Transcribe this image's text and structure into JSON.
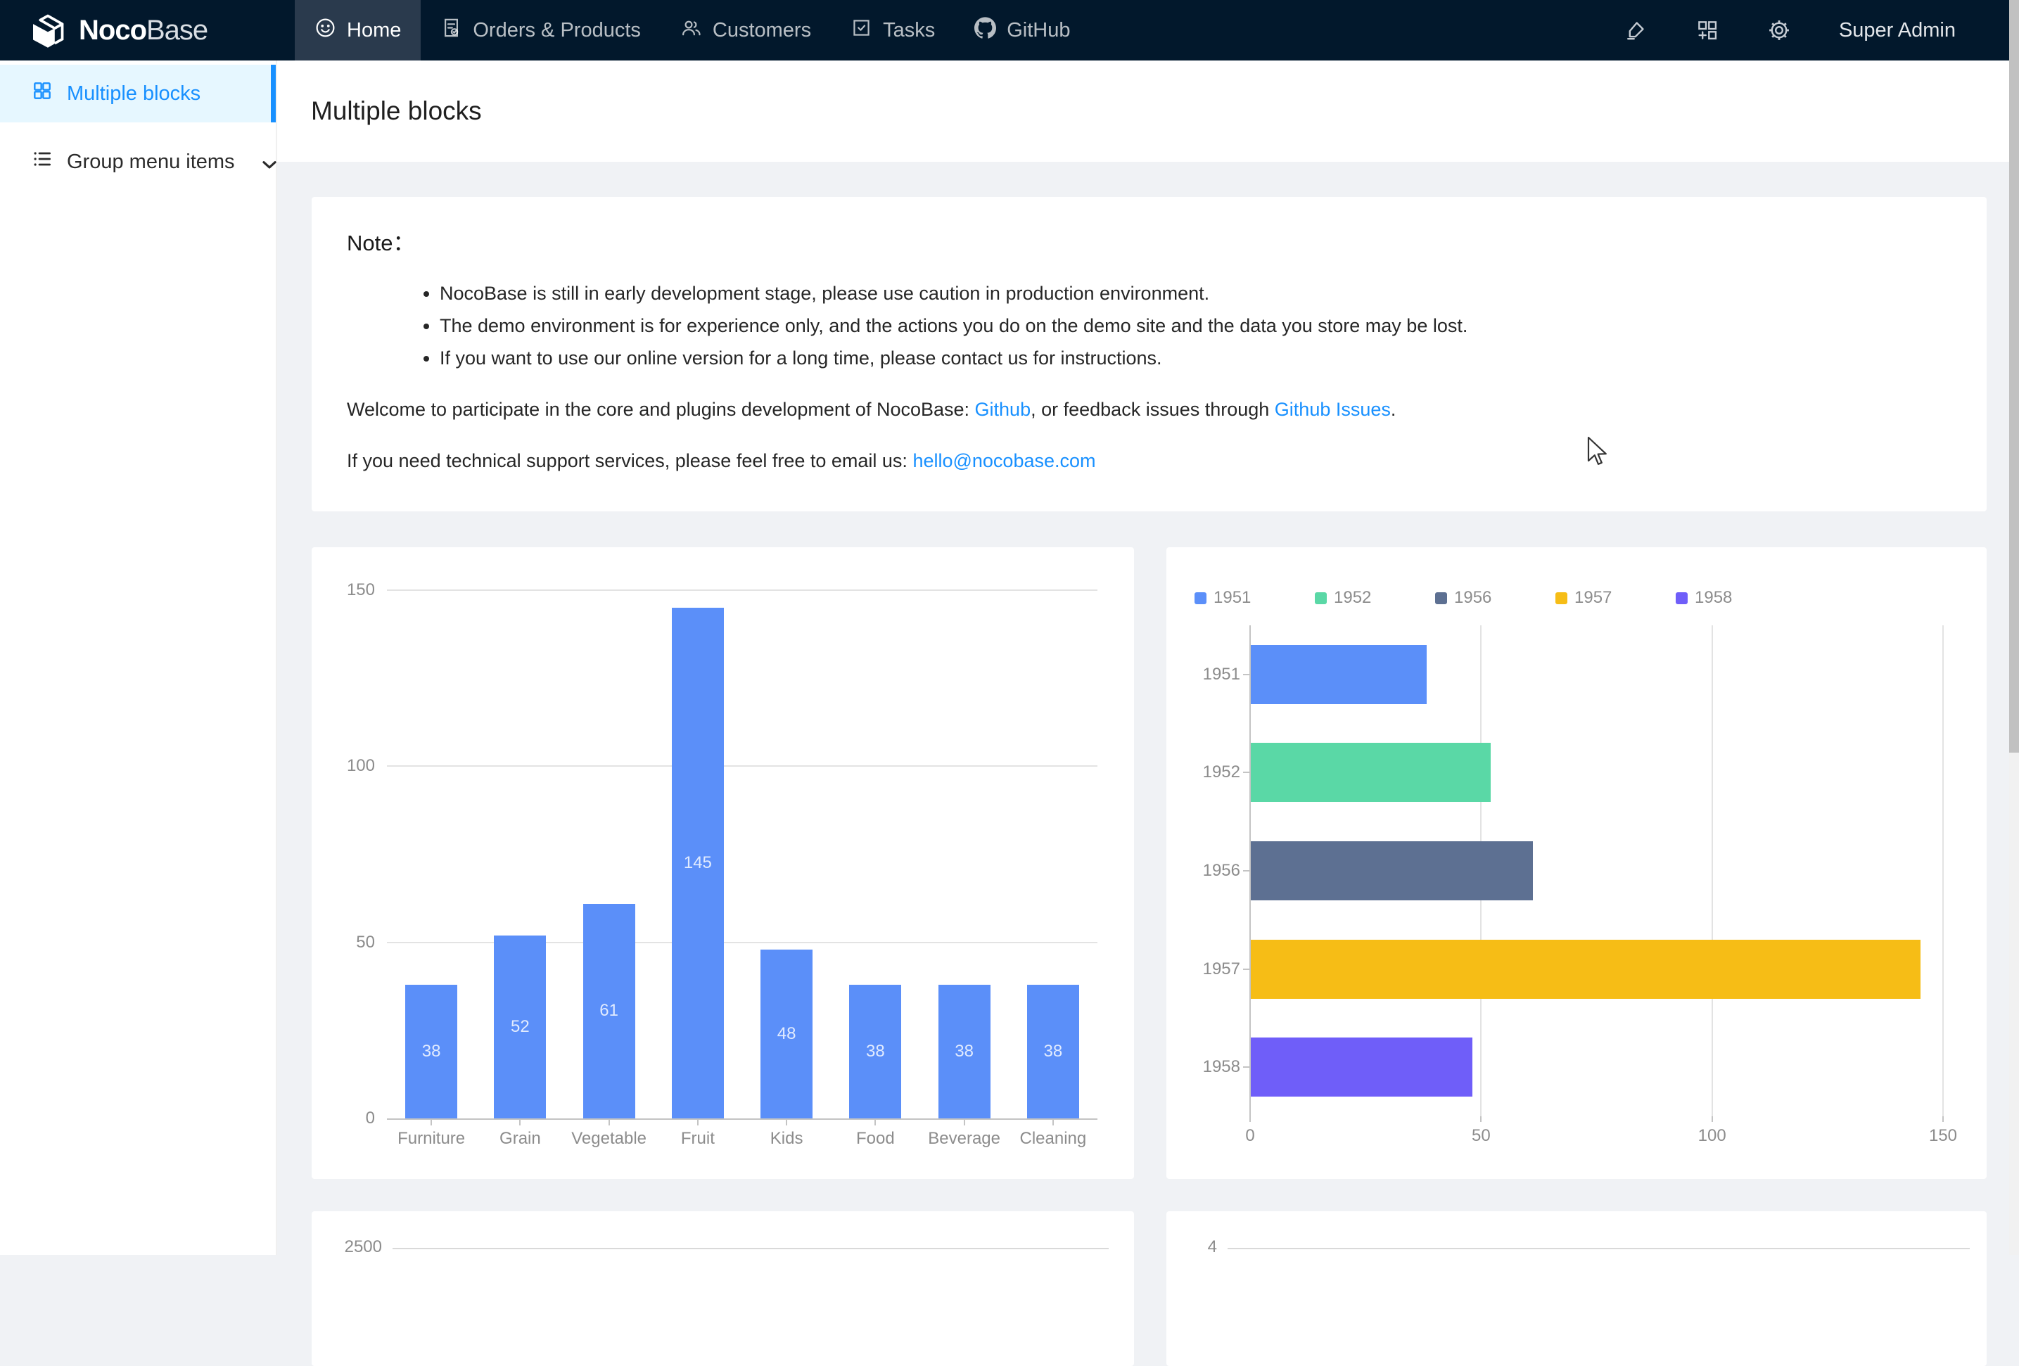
{
  "colors": {
    "nav_bg": "#02182c",
    "nav_active_bg": "#2a3a4d",
    "accent": "#1890ff",
    "content_bg": "#f0f2f5",
    "sidebar_active_bg": "#e6f7ff",
    "bar_blue": "#5B8FF9",
    "bar_green": "#5AD8A6",
    "bar_slate": "#5D7092",
    "bar_gold": "#F6BD16",
    "bar_purple": "#6F5EF9",
    "axis_label": "#8c8c8c",
    "link": "#1890ff"
  },
  "nav": {
    "brand_bold": "Noco",
    "brand_light": "Base",
    "tabs": [
      {
        "label": "Home",
        "icon": "smile-icon",
        "active": true
      },
      {
        "label": "Orders & Products",
        "icon": "orders-icon",
        "active": false
      },
      {
        "label": "Customers",
        "icon": "customers-icon",
        "active": false
      },
      {
        "label": "Tasks",
        "icon": "tasks-icon",
        "active": false
      },
      {
        "label": "GitHub",
        "icon": "github-icon",
        "active": false
      }
    ],
    "user": "Super Admin"
  },
  "sidebar": {
    "items": [
      {
        "label": "Multiple blocks",
        "icon": "appstore-icon",
        "active": true
      },
      {
        "label": "Group menu items",
        "icon": "list-icon",
        "active": false,
        "has_chevron": true
      }
    ]
  },
  "page": {
    "title": "Multiple blocks"
  },
  "note": {
    "heading": "Note：",
    "bullets": [
      "NocoBase is still in early development stage, please use caution in production environment.",
      "The demo environment is for experience only, and the actions you do on the demo site and the data you store may be lost.",
      "If you want to use our online version for a long time, please contact us for instructions."
    ],
    "welcome_prefix": "Welcome to participate in the core and plugins development of NocoBase: ",
    "welcome_link1": "Github",
    "welcome_middle": ", or feedback issues through ",
    "welcome_link2": "Github Issues",
    "welcome_suffix": ".",
    "support_prefix": "If you need technical support services, please feel free to email us: ",
    "support_link": "hello@nocobase.com"
  },
  "chart_data": [
    {
      "id": "category-column-chart",
      "type": "bar",
      "orientation": "vertical",
      "categories": [
        "Furniture",
        "Grain",
        "Vegetable",
        "Fruit",
        "Kids",
        "Food",
        "Beverage",
        "Cleaning"
      ],
      "values": [
        38,
        52,
        61,
        145,
        48,
        38,
        38,
        38
      ],
      "bar_color": "#5B8FF9",
      "value_labels_shown": true,
      "ylim": [
        0,
        150
      ],
      "yticks": [
        0,
        50,
        100,
        150
      ],
      "grid": "horizontal",
      "legend": "none",
      "title": "",
      "xlabel": "",
      "ylabel": ""
    },
    {
      "id": "year-horizontal-bar-chart",
      "type": "bar",
      "orientation": "horizontal",
      "categories": [
        "1951",
        "1952",
        "1956",
        "1957",
        "1958"
      ],
      "values": [
        38,
        52,
        61,
        145,
        48
      ],
      "colors": [
        "#5B8FF9",
        "#5AD8A6",
        "#5D7092",
        "#F6BD16",
        "#6F5EF9"
      ],
      "legend": [
        "1951",
        "1952",
        "1956",
        "1957",
        "1958"
      ],
      "legend_position": "top-left",
      "xlim": [
        0,
        150
      ],
      "xticks": [
        0,
        50,
        100,
        150
      ],
      "grid": "vertical",
      "value_labels_shown": false,
      "title": "",
      "xlabel": "",
      "ylabel": ""
    },
    {
      "id": "bottom-left-chart",
      "type": "partial",
      "visible_ytick": "2500"
    },
    {
      "id": "bottom-right-chart",
      "type": "partial",
      "visible_ytick": "4"
    }
  ]
}
